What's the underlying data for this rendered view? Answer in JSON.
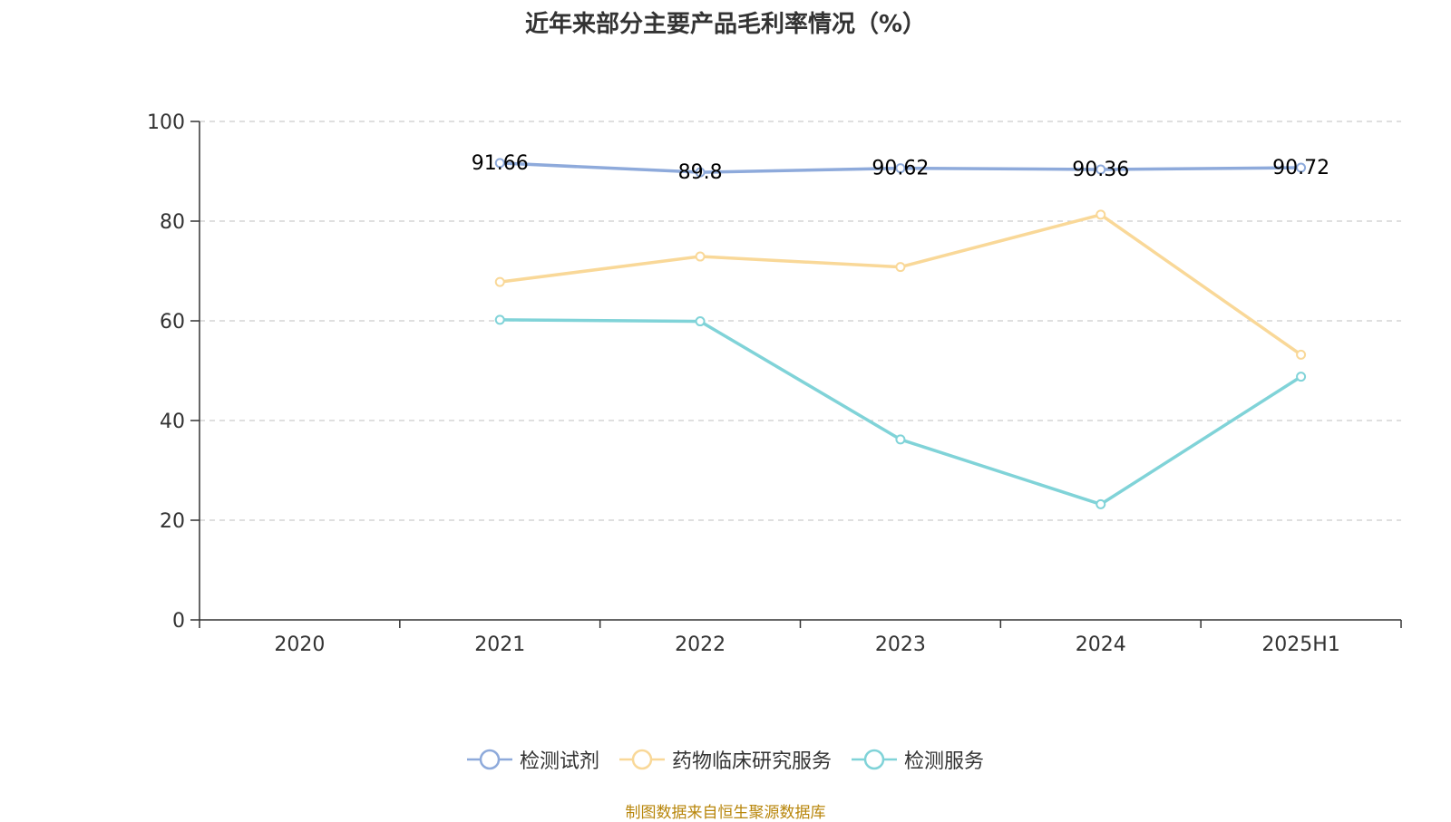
{
  "chart_data": {
    "type": "line",
    "title": "近年来部分主要产品毛利率情况（%）",
    "categories": [
      "2020",
      "2021",
      "2022",
      "2023",
      "2024",
      "2025H1"
    ],
    "ylim": [
      0,
      100
    ],
    "yticks": [
      0,
      20,
      40,
      60,
      80,
      100
    ],
    "grid": true,
    "legend_position": "bottom",
    "series": [
      {
        "name": "检测试剂",
        "color": "#8eaadb",
        "values": [
          null,
          91.66,
          89.8,
          90.62,
          90.36,
          90.72
        ],
        "labels": [
          null,
          "91.66",
          "89.8",
          "90.62",
          "90.36",
          "90.72"
        ]
      },
      {
        "name": "药物临床研究服务",
        "color": "#f9d898",
        "values": [
          null,
          67.8,
          72.9,
          70.8,
          81.3,
          53.2
        ],
        "labels": []
      },
      {
        "name": "检测服务",
        "color": "#80d3d8",
        "values": [
          null,
          60.2,
          59.9,
          36.2,
          23.2,
          48.8
        ],
        "labels": []
      }
    ]
  },
  "source_note": "制图数据来自恒生聚源数据库"
}
